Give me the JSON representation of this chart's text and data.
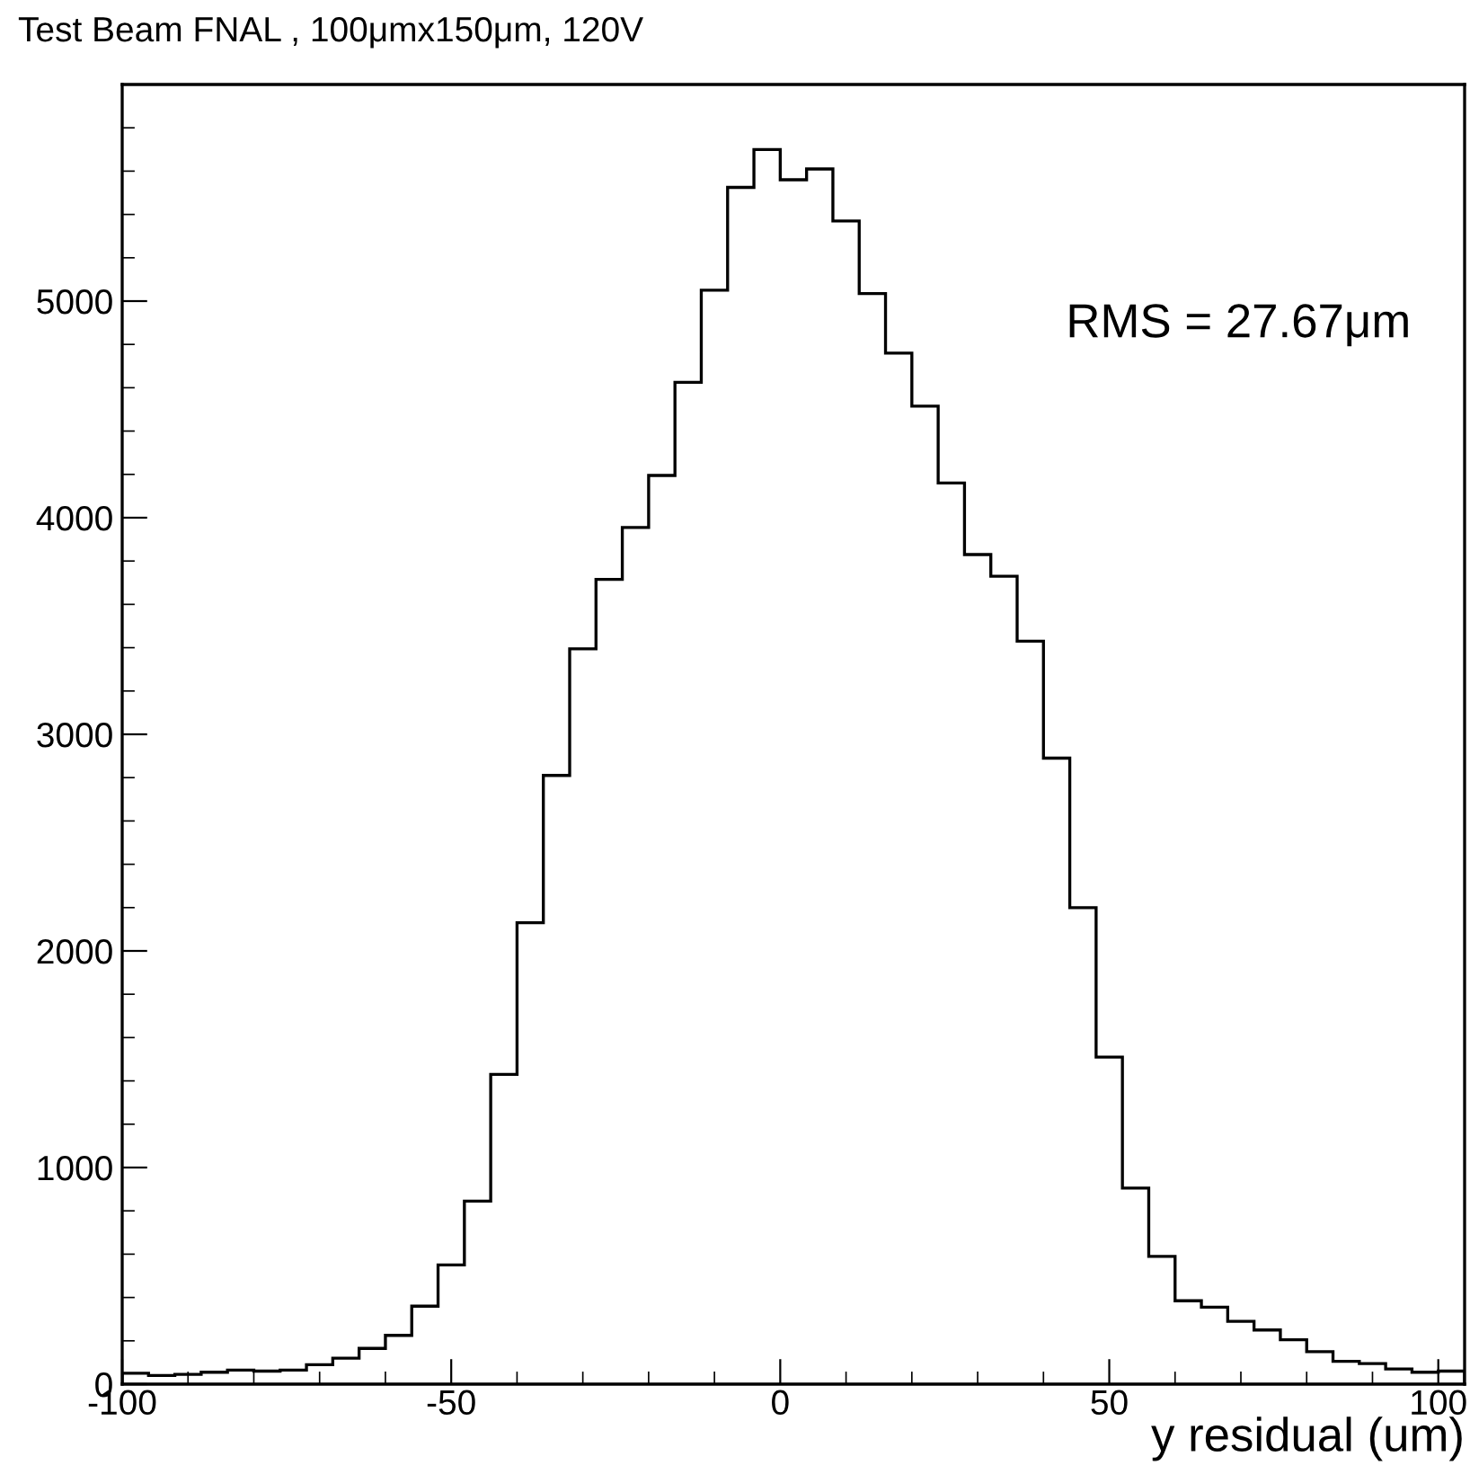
{
  "chart_data": {
    "type": "histogram",
    "title": "Test Beam FNAL , 100μmx150μm, 120V",
    "xlabel": "y residual (um)",
    "annotations": [
      "RMS = 27.67μm"
    ],
    "bins": [
      -100,
      -96,
      -92,
      -88,
      -84,
      -80,
      -76,
      -72,
      -68,
      -64,
      -60,
      -56,
      -52,
      -48,
      -44,
      -40,
      -36,
      -32,
      -28,
      -24,
      -20,
      -16,
      -12,
      -8,
      -4,
      0,
      4,
      8,
      12,
      16,
      20,
      24,
      28,
      32,
      36,
      40,
      44,
      48,
      52,
      56,
      60,
      64,
      68,
      72,
      76,
      80,
      84,
      88,
      92,
      96,
      100,
      104
    ],
    "values": [
      50,
      40,
      45,
      55,
      65,
      60,
      65,
      90,
      120,
      165,
      225,
      360,
      550,
      845,
      1430,
      2130,
      2810,
      3395,
      3715,
      3955,
      4195,
      4625,
      5050,
      5525,
      5700,
      5560,
      5610,
      5370,
      5035,
      4760,
      4515,
      4160,
      3830,
      3730,
      3430,
      2890,
      2200,
      1510,
      905,
      590,
      385,
      355,
      290,
      250,
      205,
      150,
      105,
      95,
      70,
      55,
      60
    ],
    "color": "#000000",
    "xlim": [
      -100,
      104
    ],
    "xticks": [
      -100,
      {
        "value": -90,
        "label": null
      },
      {
        "value": -80,
        "label": null
      },
      {
        "value": -70,
        "label": null
      },
      {
        "value": -60,
        "label": null
      },
      -50,
      {
        "value": -40,
        "label": null
      },
      {
        "value": -30,
        "label": null
      },
      {
        "value": -20,
        "label": null
      },
      {
        "value": -10,
        "label": null
      },
      0,
      {
        "value": 10,
        "label": null
      },
      {
        "value": 20,
        "label": null
      },
      {
        "value": 30,
        "label": null
      },
      {
        "value": 40,
        "label": null
      },
      50,
      {
        "value": 60,
        "label": null
      },
      {
        "value": 70,
        "label": null
      },
      {
        "value": 80,
        "label": null
      },
      {
        "value": 90,
        "label": null
      },
      100
    ],
    "ylim": [
      0,
      6000
    ],
    "yticks": [
      0,
      {
        "value": 200,
        "label": null
      },
      {
        "value": 400,
        "label": null
      },
      {
        "value": 600,
        "label": null
      },
      {
        "value": 800,
        "label": null
      },
      1000,
      {
        "value": 1200,
        "label": null
      },
      {
        "value": 1400,
        "label": null
      },
      {
        "value": 1600,
        "label": null
      },
      {
        "value": 1800,
        "label": null
      },
      2000,
      {
        "value": 2200,
        "label": null
      },
      {
        "value": 2400,
        "label": null
      },
      {
        "value": 2600,
        "label": null
      },
      {
        "value": 2800,
        "label": null
      },
      3000,
      {
        "value": 3200,
        "label": null
      },
      {
        "value": 3400,
        "label": null
      },
      {
        "value": 3600,
        "label": null
      },
      {
        "value": 3800,
        "label": null
      },
      4000,
      {
        "value": 4200,
        "label": null
      },
      {
        "value": 4400,
        "label": null
      },
      {
        "value": 4600,
        "label": null
      },
      {
        "value": 4800,
        "label": null
      },
      5000,
      {
        "value": 5200,
        "label": null
      },
      {
        "value": 5400,
        "label": null
      },
      {
        "value": 5600,
        "label": null
      },
      {
        "value": 5800,
        "label": null
      }
    ],
    "grid": false
  }
}
